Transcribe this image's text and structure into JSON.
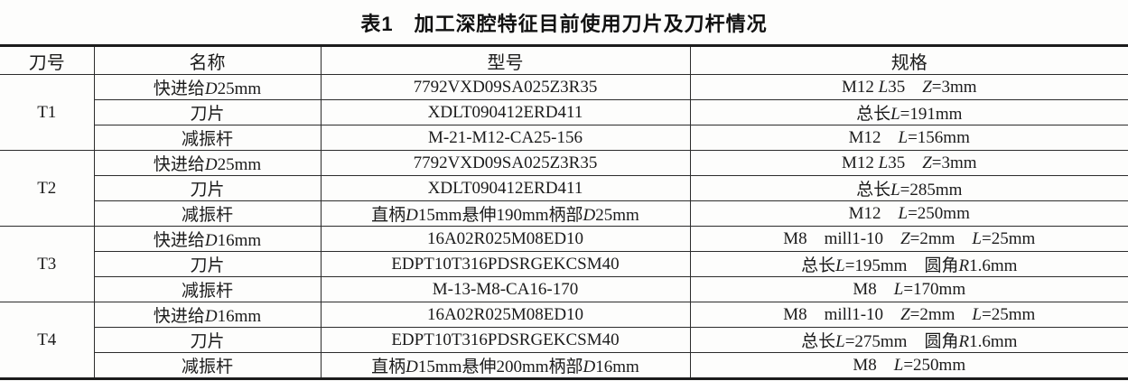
{
  "title": "表1　加工深腔特征目前使用刀片及刀杆情况",
  "table": {
    "headers": [
      "刀号",
      "名称",
      "型号",
      "规格"
    ],
    "groups": [
      {
        "tool": "T1",
        "rows": [
          {
            "name": "快进给<i>D</i>25mm",
            "model": "7792VXD09SA025Z3R35",
            "spec": "M12 <i>L</i>35 <i>Z</i>=3mm"
          },
          {
            "name": "刀片",
            "model": "XDLT090412ERD411",
            "spec": "总长<i>L</i>=191mm"
          },
          {
            "name": "减振杆",
            "model": "M-21-M12-CA25-156",
            "spec": "M12 <i>L</i>=156mm"
          }
        ]
      },
      {
        "tool": "T2",
        "rows": [
          {
            "name": "快进给<i>D</i>25mm",
            "model": "7792VXD09SA025Z3R35",
            "spec": "M12 <i>L</i>35 <i>Z</i>=3mm"
          },
          {
            "name": "刀片",
            "model": "XDLT090412ERD411",
            "spec": "总长<i>L</i>=285mm"
          },
          {
            "name": "减振杆",
            "model": "直柄<i>D</i>15mm悬伸190mm柄部<i>D</i>25mm",
            "spec": "M12 <i>L</i>=250mm"
          }
        ]
      },
      {
        "tool": "T3",
        "rows": [
          {
            "name": "快进给<i>D</i>16mm",
            "model": "16A02R025M08ED10",
            "spec": "M8 mill1-10 <i>Z</i>=2mm <i>L</i>=25mm"
          },
          {
            "name": "刀片",
            "model": "EDPT10T316PDSRGEKCSM40",
            "spec": "总长<i>L</i>=195mm 圆角<i>R</i>1.6mm"
          },
          {
            "name": "减振杆",
            "model": "M-13-M8-CA16-170",
            "spec": "M8 <i>L</i>=170mm"
          }
        ]
      },
      {
        "tool": "T4",
        "rows": [
          {
            "name": "快进给<i>D</i>16mm",
            "model": "16A02R025M08ED10",
            "spec": "M8 mill1-10 <i>Z</i>=2mm <i>L</i>=25mm"
          },
          {
            "name": "刀片",
            "model": "EDPT10T316PDSRGEKCSM40",
            "spec": "总长<i>L</i>=275mm 圆角<i>R</i>1.6mm"
          },
          {
            "name": "减振杆",
            "model": "直柄<i>D</i>15mm悬伸200mm柄部<i>D</i>16mm",
            "spec": "M8 <i>L</i>=250mm"
          }
        ]
      }
    ]
  },
  "colors": {
    "border_heavy": "#1c1c1c",
    "border_light": "#2c2c2c",
    "text": "#1b1b1b",
    "background": "#fdfdfc"
  }
}
